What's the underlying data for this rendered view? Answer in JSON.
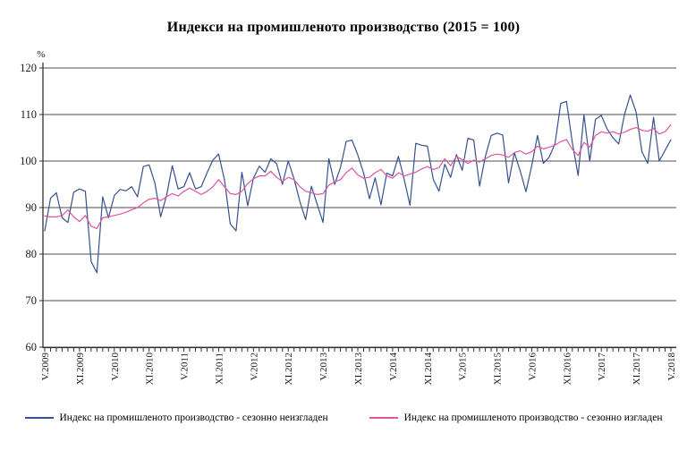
{
  "title": "Индекси на промишленото производство (2015 = 100)",
  "chart_data": {
    "type": "line",
    "y_unit_label": "%",
    "y_ticks": [
      60,
      70,
      80,
      90,
      100,
      110,
      120
    ],
    "ylim": [
      60,
      120
    ],
    "grid": "horizontal",
    "legend_position": "bottom",
    "x_is_monthly": true,
    "x_first_month": "V.2009",
    "x_last_month": "V.2018",
    "x_tick_labels": [
      {
        "label": "V.2009",
        "month_index": 0
      },
      {
        "label": "XI.2009",
        "month_index": 6
      },
      {
        "label": "V.2010",
        "month_index": 12
      },
      {
        "label": "XI.2010",
        "month_index": 18
      },
      {
        "label": "V.2011",
        "month_index": 24
      },
      {
        "label": "XI.2011",
        "month_index": 30
      },
      {
        "label": "V.2012",
        "month_index": 36
      },
      {
        "label": "XI.2012",
        "month_index": 42
      },
      {
        "label": "V.2013",
        "month_index": 48
      },
      {
        "label": "XI.2013",
        "month_index": 54
      },
      {
        "label": "V.2014",
        "month_index": 60
      },
      {
        "label": "XI.2014",
        "month_index": 66
      },
      {
        "label": "V.2015",
        "month_index": 72
      },
      {
        "label": "XI.2015",
        "month_index": 78
      },
      {
        "label": "V.2016",
        "month_index": 84
      },
      {
        "label": "XI.2016",
        "month_index": 90
      },
      {
        "label": "V.2017",
        "month_index": 96
      },
      {
        "label": "XI.2017",
        "month_index": 102
      },
      {
        "label": "V.2018",
        "month_index": 108
      }
    ],
    "series": [
      {
        "name": "Индекс на промишленото производство - сезонно  неизгладен",
        "color": "#35518f",
        "values": [
          85.0,
          92.0,
          93.2,
          87.8,
          86.8,
          93.3,
          94.0,
          93.5,
          78.4,
          76.0,
          92.3,
          87.8,
          92.6,
          93.9,
          93.6,
          94.5,
          92.3,
          98.8,
          99.2,
          95.3,
          88.0,
          92.5,
          99.0,
          94.0,
          94.5,
          97.5,
          94.0,
          94.5,
          97.5,
          100.2,
          101.5,
          96.0,
          86.5,
          85.0,
          97.6,
          90.4,
          96.3,
          98.9,
          97.6,
          100.5,
          99.4,
          95.0,
          100.0,
          96.2,
          91.3,
          87.4,
          94.6,
          90.7,
          86.8,
          100.5,
          95.0,
          98.6,
          104.2,
          104.5,
          101.3,
          97.4,
          91.9,
          96.4,
          90.6,
          97.4,
          96.8,
          101.0,
          96.0,
          90.5,
          103.8,
          103.4,
          103.2,
          96.1,
          93.5,
          99.3,
          96.5,
          101.4,
          98.0,
          104.9,
          104.5,
          94.6,
          101.0,
          105.5,
          106.0,
          105.6,
          95.3,
          101.8,
          97.9,
          93.4,
          99.0,
          105.5,
          99.5,
          100.8,
          103.7,
          112.4,
          112.8,
          104.0,
          96.9,
          109.9,
          100.0,
          109.0,
          109.8,
          106.9,
          105.0,
          103.7,
          110.0,
          114.2,
          110.5,
          102.0,
          99.5,
          109.4,
          100.0,
          102.3,
          104.6
        ]
      },
      {
        "name": "Индекс на промишленото производство - сезонно изгладен",
        "color": "#e0549c",
        "values": [
          88.2,
          88.0,
          88.0,
          88.3,
          89.5,
          88.0,
          87.0,
          88.3,
          86.0,
          85.5,
          87.8,
          88.0,
          88.3,
          88.6,
          89.0,
          89.5,
          90.0,
          91.0,
          91.8,
          92.0,
          91.5,
          92.3,
          93.0,
          92.5,
          93.5,
          94.2,
          93.5,
          92.8,
          93.5,
          94.5,
          96.0,
          94.5,
          93.0,
          92.8,
          93.5,
          95.2,
          96.2,
          96.8,
          96.8,
          97.8,
          96.5,
          95.6,
          96.5,
          96.0,
          94.5,
          93.5,
          93.2,
          92.8,
          93.0,
          94.8,
          95.5,
          96.0,
          97.5,
          98.5,
          97.0,
          96.3,
          96.5,
          97.5,
          98.2,
          96.8,
          96.3,
          97.5,
          96.8,
          97.2,
          97.6,
          98.3,
          98.8,
          98.2,
          98.6,
          100.5,
          99.0,
          101.0,
          100.3,
          99.5,
          100.2,
          99.8,
          100.5,
          101.2,
          101.5,
          101.3,
          100.8,
          101.8,
          102.2,
          101.5,
          102.0,
          103.2,
          102.6,
          103.0,
          103.4,
          104.2,
          104.6,
          102.5,
          101.2,
          104.0,
          103.0,
          105.5,
          106.3,
          106.0,
          106.3,
          105.8,
          106.2,
          106.8,
          107.2,
          106.6,
          106.4,
          107.0,
          105.8,
          106.3,
          107.8
        ]
      }
    ],
    "colors": {
      "gridline": "#4d4d4d",
      "axis": "#333333",
      "tick_text": "#1a1a1a"
    }
  }
}
